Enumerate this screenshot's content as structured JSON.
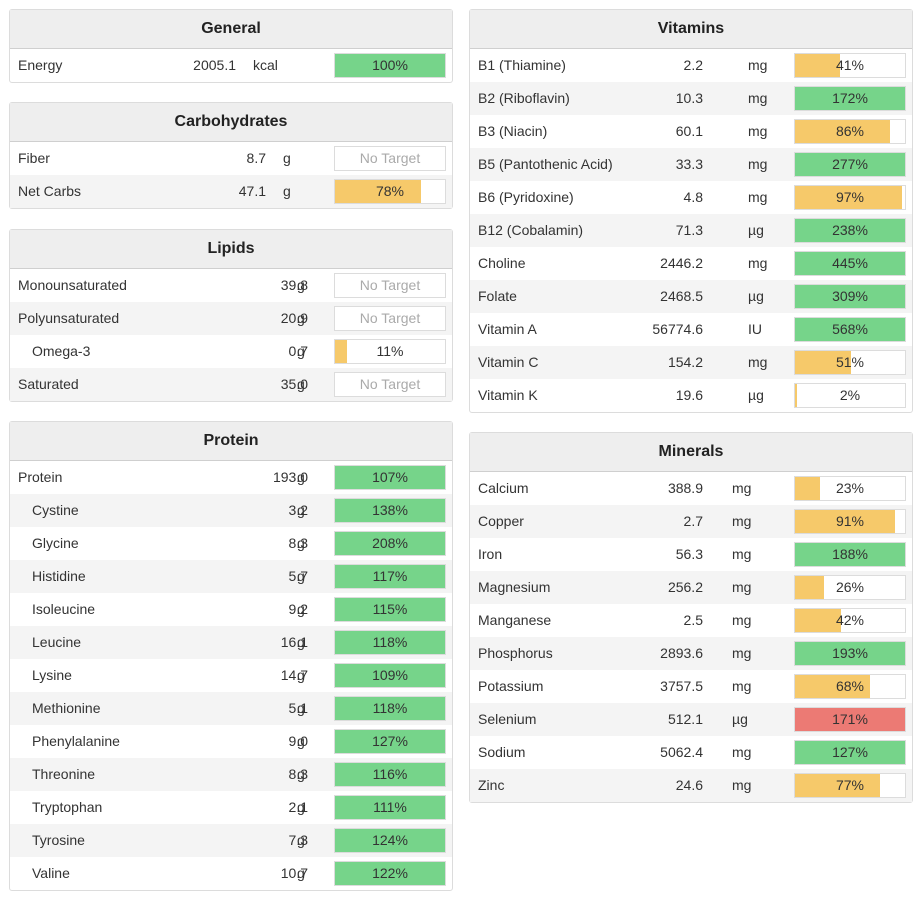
{
  "colors": {
    "green": "#76d48a",
    "yellow": "#f6c96a",
    "red": "#ec7a74"
  },
  "panels": [
    {
      "id": "general",
      "title": "General",
      "rows": [
        {
          "name": "Energy",
          "value": "2005.1",
          "unit": "kcal",
          "pct": "100%",
          "fill": 1.0,
          "color": "green",
          "indent": false
        }
      ]
    },
    {
      "id": "carbohydrates",
      "title": "Carbohydrates",
      "rows": [
        {
          "name": "Fiber",
          "value": "8.7",
          "unit": "g",
          "pct": "No Target",
          "fill": 0,
          "color": "none",
          "indent": false
        },
        {
          "name": "Net Carbs",
          "value": "47.1",
          "unit": "g",
          "pct": "78%",
          "fill": 0.78,
          "color": "yellow",
          "indent": false
        }
      ]
    },
    {
      "id": "lipids",
      "title": "Lipids",
      "rows": [
        {
          "name": "Monounsaturated",
          "value": "39.8",
          "unit": "g",
          "pct": "No Target",
          "fill": 0,
          "color": "none",
          "indent": false
        },
        {
          "name": "Polyunsaturated",
          "value": "20.9",
          "unit": "g",
          "pct": "No Target",
          "fill": 0,
          "color": "none",
          "indent": false
        },
        {
          "name": "Omega-3",
          "value": "0.7",
          "unit": "g",
          "pct": "11%",
          "fill": 0.11,
          "color": "yellow",
          "indent": true
        },
        {
          "name": "Saturated",
          "value": "35.0",
          "unit": "g",
          "pct": "No Target",
          "fill": 0,
          "color": "none",
          "indent": false
        }
      ]
    },
    {
      "id": "protein",
      "title": "Protein",
      "rows": [
        {
          "name": "Protein",
          "value": "193.0",
          "unit": "g",
          "pct": "107%",
          "fill": 1.0,
          "color": "green",
          "indent": false
        },
        {
          "name": "Cystine",
          "value": "3.2",
          "unit": "g",
          "pct": "138%",
          "fill": 1.0,
          "color": "green",
          "indent": true
        },
        {
          "name": "Glycine",
          "value": "8.3",
          "unit": "g",
          "pct": "208%",
          "fill": 1.0,
          "color": "green",
          "indent": true
        },
        {
          "name": "Histidine",
          "value": "5.7",
          "unit": "g",
          "pct": "117%",
          "fill": 1.0,
          "color": "green",
          "indent": true
        },
        {
          "name": "Isoleucine",
          "value": "9.2",
          "unit": "g",
          "pct": "115%",
          "fill": 1.0,
          "color": "green",
          "indent": true
        },
        {
          "name": "Leucine",
          "value": "16.1",
          "unit": "g",
          "pct": "118%",
          "fill": 1.0,
          "color": "green",
          "indent": true
        },
        {
          "name": "Lysine",
          "value": "14.7",
          "unit": "g",
          "pct": "109%",
          "fill": 1.0,
          "color": "green",
          "indent": true
        },
        {
          "name": "Methionine",
          "value": "5.1",
          "unit": "g",
          "pct": "118%",
          "fill": 1.0,
          "color": "green",
          "indent": true
        },
        {
          "name": "Phenylalanine",
          "value": "9.0",
          "unit": "g",
          "pct": "127%",
          "fill": 1.0,
          "color": "green",
          "indent": true
        },
        {
          "name": "Threonine",
          "value": "8.3",
          "unit": "g",
          "pct": "116%",
          "fill": 1.0,
          "color": "green",
          "indent": true
        },
        {
          "name": "Tryptophan",
          "value": "2.1",
          "unit": "g",
          "pct": "111%",
          "fill": 1.0,
          "color": "green",
          "indent": true
        },
        {
          "name": "Tyrosine",
          "value": "7.3",
          "unit": "g",
          "pct": "124%",
          "fill": 1.0,
          "color": "green",
          "indent": true
        },
        {
          "name": "Valine",
          "value": "10.7",
          "unit": "g",
          "pct": "122%",
          "fill": 1.0,
          "color": "green",
          "indent": true
        }
      ]
    },
    {
      "id": "vitamins",
      "title": "Vitamins",
      "rows": [
        {
          "name": "B1 (Thiamine)",
          "value": "2.2",
          "unit": "mg",
          "pct": "41%",
          "fill": 0.41,
          "color": "yellow",
          "indent": false
        },
        {
          "name": "B2 (Riboflavin)",
          "value": "10.3",
          "unit": "mg",
          "pct": "172%",
          "fill": 1.0,
          "color": "green",
          "indent": false
        },
        {
          "name": "B3 (Niacin)",
          "value": "60.1",
          "unit": "mg",
          "pct": "86%",
          "fill": 0.86,
          "color": "yellow",
          "indent": false
        },
        {
          "name": "B5 (Pantothenic Acid)",
          "value": "33.3",
          "unit": "mg",
          "pct": "277%",
          "fill": 1.0,
          "color": "green",
          "indent": false
        },
        {
          "name": "B6 (Pyridoxine)",
          "value": "4.8",
          "unit": "mg",
          "pct": "97%",
          "fill": 0.97,
          "color": "yellow",
          "indent": false
        },
        {
          "name": "B12 (Cobalamin)",
          "value": "71.3",
          "unit": "µg",
          "pct": "238%",
          "fill": 1.0,
          "color": "green",
          "indent": false
        },
        {
          "name": "Choline",
          "value": "2446.2",
          "unit": "mg",
          "pct": "445%",
          "fill": 1.0,
          "color": "green",
          "indent": false
        },
        {
          "name": "Folate",
          "value": "2468.5",
          "unit": "µg",
          "pct": "309%",
          "fill": 1.0,
          "color": "green",
          "indent": false
        },
        {
          "name": "Vitamin A",
          "value": "56774.6",
          "unit": "IU",
          "pct": "568%",
          "fill": 1.0,
          "color": "green",
          "indent": false
        },
        {
          "name": "Vitamin C",
          "value": "154.2",
          "unit": "mg",
          "pct": "51%",
          "fill": 0.51,
          "color": "yellow",
          "indent": false
        },
        {
          "name": "Vitamin K",
          "value": "19.6",
          "unit": "µg",
          "pct": "2%",
          "fill": 0.02,
          "color": "yellow",
          "indent": false
        }
      ]
    },
    {
      "id": "minerals",
      "title": "Minerals",
      "rows": [
        {
          "name": "Calcium",
          "value": "388.9",
          "unit": "mg",
          "pct": "23%",
          "fill": 0.23,
          "color": "yellow",
          "indent": false
        },
        {
          "name": "Copper",
          "value": "2.7",
          "unit": "mg",
          "pct": "91%",
          "fill": 0.91,
          "color": "yellow",
          "indent": false
        },
        {
          "name": "Iron",
          "value": "56.3",
          "unit": "mg",
          "pct": "188%",
          "fill": 1.0,
          "color": "green",
          "indent": false
        },
        {
          "name": "Magnesium",
          "value": "256.2",
          "unit": "mg",
          "pct": "26%",
          "fill": 0.26,
          "color": "yellow",
          "indent": false
        },
        {
          "name": "Manganese",
          "value": "2.5",
          "unit": "mg",
          "pct": "42%",
          "fill": 0.42,
          "color": "yellow",
          "indent": false
        },
        {
          "name": "Phosphorus",
          "value": "2893.6",
          "unit": "mg",
          "pct": "193%",
          "fill": 1.0,
          "color": "green",
          "indent": false
        },
        {
          "name": "Potassium",
          "value": "3757.5",
          "unit": "mg",
          "pct": "68%",
          "fill": 0.68,
          "color": "yellow",
          "indent": false
        },
        {
          "name": "Selenium",
          "value": "512.1",
          "unit": "µg",
          "pct": "171%",
          "fill": 1.0,
          "color": "red",
          "indent": false
        },
        {
          "name": "Sodium",
          "value": "5062.4",
          "unit": "mg",
          "pct": "127%",
          "fill": 1.0,
          "color": "green",
          "indent": false
        },
        {
          "name": "Zinc",
          "value": "24.6",
          "unit": "mg",
          "pct": "77%",
          "fill": 0.77,
          "color": "yellow",
          "indent": false
        }
      ]
    }
  ]
}
